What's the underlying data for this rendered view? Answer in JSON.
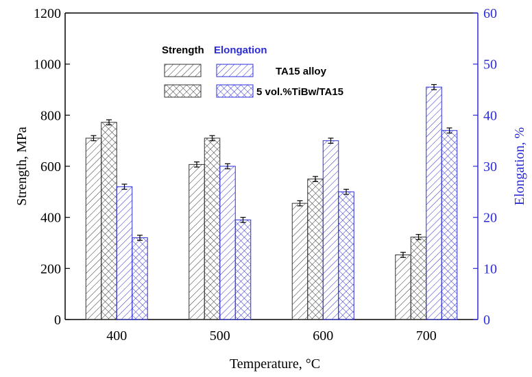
{
  "chart_data": {
    "type": "bar",
    "categories": [
      "400",
      "500",
      "600",
      "700"
    ],
    "xlabel": "Temperature, °C",
    "ylabel_left": "Strength, MPa",
    "ylabel_right": "Elongation, %",
    "ylim_left": [
      0,
      1200
    ],
    "ylim_right": [
      0,
      60
    ],
    "yticks_left": [
      0,
      200,
      400,
      600,
      800,
      1000,
      1200
    ],
    "yticks_right": [
      0,
      10,
      20,
      30,
      40,
      50,
      60
    ],
    "series": [
      {
        "name": "TA15 alloy",
        "quantity": "Strength",
        "axis": "left",
        "pattern": "hatch",
        "color": "#333333",
        "values": [
          710,
          607,
          455,
          253
        ],
        "errors": [
          10,
          10,
          10,
          10
        ]
      },
      {
        "name": "5 vol.%TiBw/TA15",
        "quantity": "Strength",
        "axis": "left",
        "pattern": "cross",
        "color": "#333333",
        "values": [
          772,
          710,
          550,
          323
        ],
        "errors": [
          10,
          10,
          10,
          10
        ]
      },
      {
        "name": "TA15 alloy",
        "quantity": "Elongation",
        "axis": "right",
        "pattern": "hatch",
        "color": "#2b2bd6",
        "values": [
          26,
          30,
          35,
          45.5
        ],
        "errors": [
          0.5,
          0.5,
          0.5,
          0.5
        ]
      },
      {
        "name": "5 vol.%TiBw/TA15",
        "quantity": "Elongation",
        "axis": "right",
        "pattern": "cross",
        "color": "#2b2bd6",
        "values": [
          16,
          19.5,
          25,
          37
        ],
        "errors": [
          0.5,
          0.5,
          0.5,
          0.5
        ]
      }
    ],
    "legend": {
      "header_strength": "Strength",
      "header_elongation": "Elongation",
      "row1_label": "TA15 alloy",
      "row2_label": "5 vol.%TiBw/TA15",
      "placement": "top-center"
    },
    "colors": {
      "strength": "#333333",
      "elongation": "#2b2bd6",
      "right_axis": "#2b2bd6"
    }
  }
}
